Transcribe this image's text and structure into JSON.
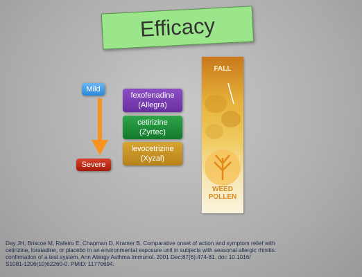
{
  "slide": {
    "title": "Efficacy",
    "scale": {
      "top": "Mild",
      "bottom": "Severe"
    },
    "drugs": [
      {
        "generic": "fexofenadine",
        "brand": "(Allegra)"
      },
      {
        "generic": "cetirizine",
        "brand": "(Zyrtec)"
      },
      {
        "generic": "levocetrizine",
        "brand": "(Xyzal)"
      }
    ],
    "poster": {
      "top": "FALL",
      "bottom": [
        "WEED",
        "POLLEN"
      ]
    },
    "citation": [
      "Day JH, Briscoe M, Rafeiro E, Chapman D, Kramer B. Comparative onset of action and symptom relief with",
      "cetirizine, loratadine, or placebo in an environmental exposure unit in subjects with seasonal allergic rhinitis:",
      "confirmation of a test system. Ann Allergy Asthma Immunol. 2001 Dec;87(6):474-81. doi: 10.1016/",
      "S1081-1206(10)62260-0. PMID: 11770694."
    ]
  }
}
